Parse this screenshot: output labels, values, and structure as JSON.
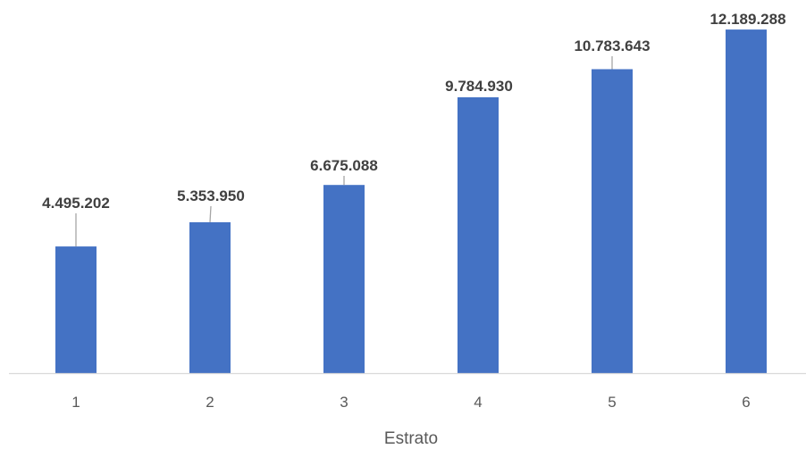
{
  "chart_data": {
    "type": "bar",
    "categories": [
      "1",
      "2",
      "3",
      "4",
      "5",
      "6"
    ],
    "values": [
      4495202,
      5353950,
      6675088,
      9784930,
      10783643,
      12189288
    ],
    "data_labels": [
      "4.495.202",
      "5.353.950",
      "6.675.088",
      "9.784.930",
      "10.783.643",
      "12.189.288"
    ],
    "title": "",
    "xlabel": "Estrato",
    "ylabel": "",
    "ylim": [
      0,
      12700000
    ],
    "grid": false,
    "legend": "none",
    "bar_color": "#4472C4",
    "leader_line_color": "#A6A6A6",
    "axis_color": "#D9D9D9"
  }
}
